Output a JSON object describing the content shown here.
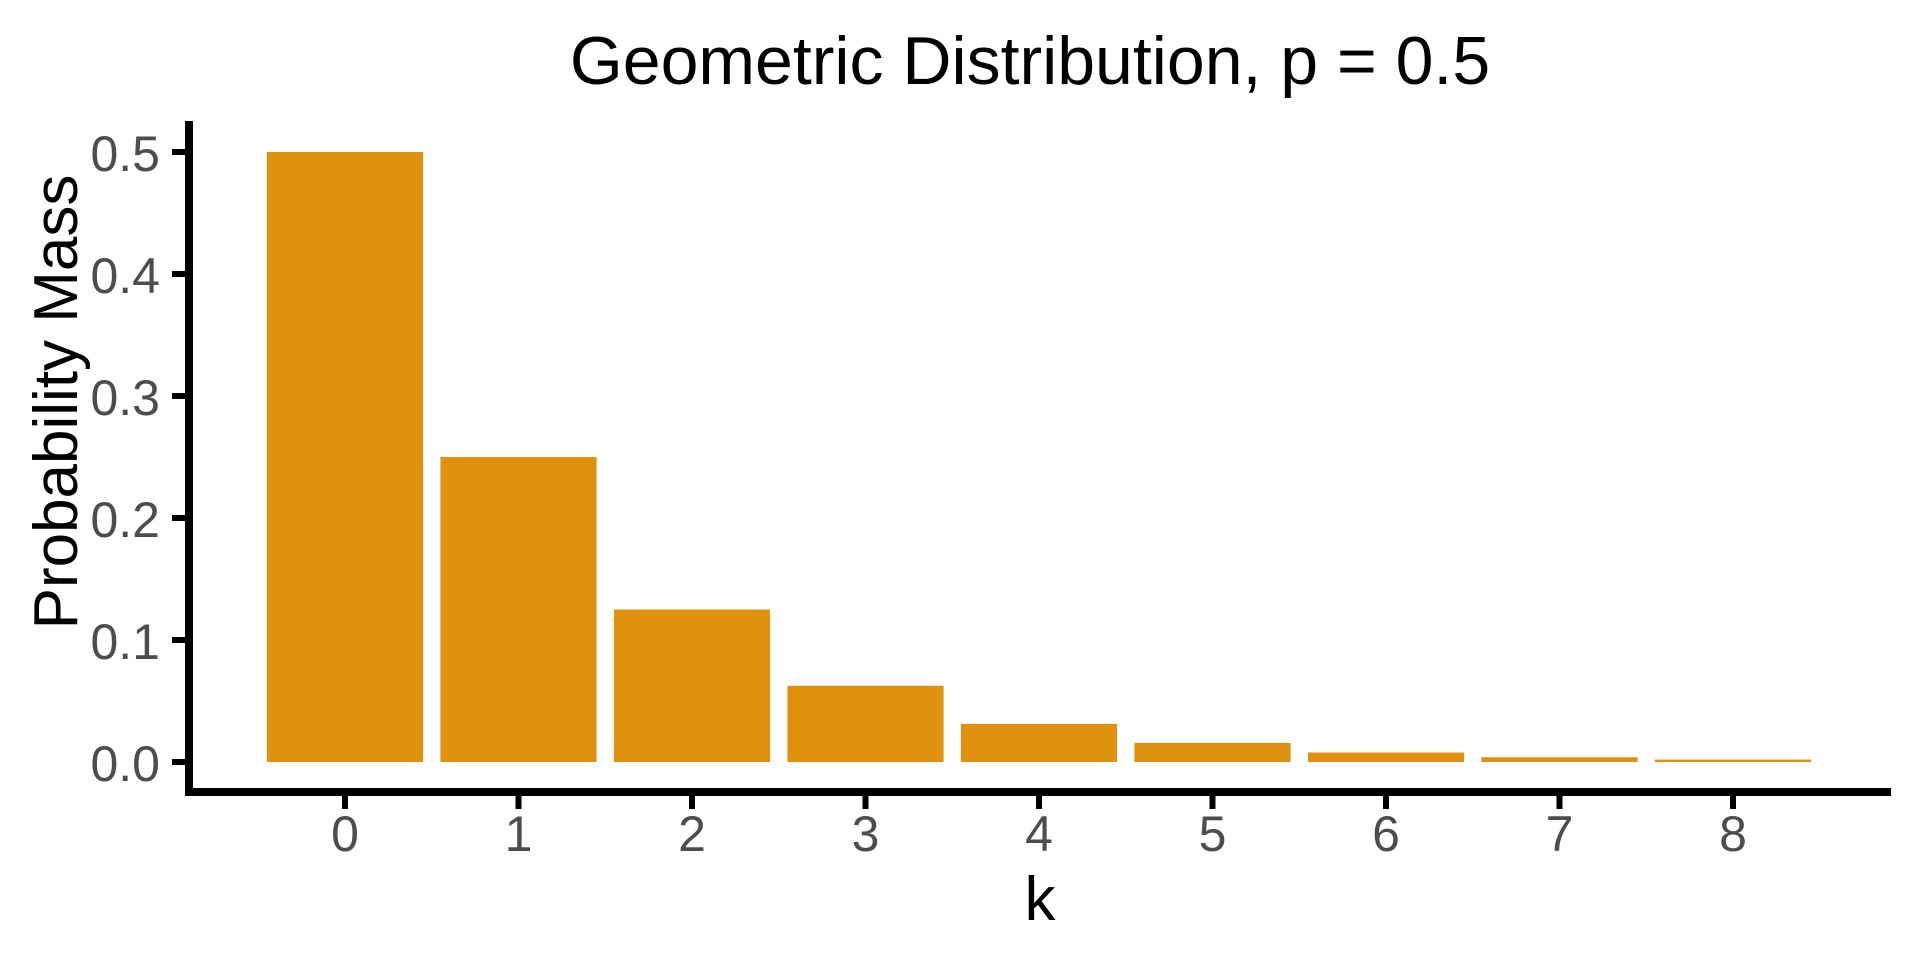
{
  "chart_data": {
    "type": "bar",
    "title": "Geometric Distribution, p = 0.5",
    "xlabel": "k",
    "ylabel": "Probability Mass",
    "categories": [
      0,
      1,
      2,
      3,
      4,
      5,
      6,
      7,
      8
    ],
    "values": [
      0.5,
      0.25,
      0.125,
      0.0625,
      0.03125,
      0.015625,
      0.0078125,
      0.00390625,
      0.001953125
    ],
    "x_tick_labels": [
      "0",
      "1",
      "2",
      "3",
      "4",
      "5",
      "6",
      "7",
      "8"
    ],
    "y_tick_labels": [
      "0.0",
      "0.1",
      "0.2",
      "0.3",
      "0.4",
      "0.5"
    ],
    "y_tick_values": [
      0.0,
      0.1,
      0.2,
      0.3,
      0.4,
      0.5
    ],
    "ylim": [
      0,
      0.5
    ],
    "bar_width_fraction": 0.9,
    "grid": false,
    "legend": false,
    "colors": {
      "bar_fill": "#E0920F",
      "axis_line": "#000000",
      "tick_label": "#4D4D4D",
      "title_text": "#000000",
      "background": "#FFFFFF"
    }
  }
}
